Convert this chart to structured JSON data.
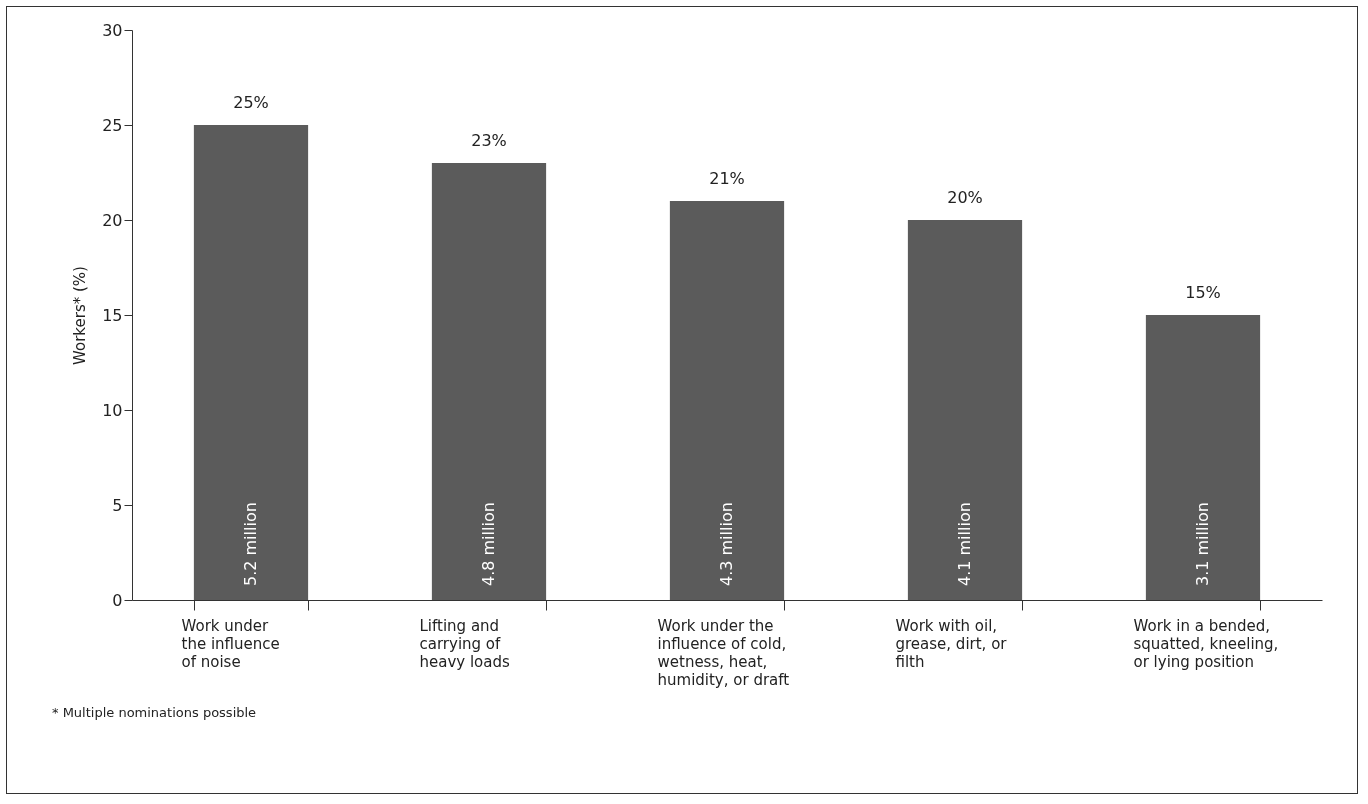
{
  "chart_data": {
    "type": "bar",
    "categories": [
      "Work under\nthe influence\nof noise",
      "Lifting and\ncarrying of\nheavy loads",
      "Work under the\ninfluence of cold,\nwetness, heat,\nhumidity, or draft",
      "Work with oil,\ngrease, dirt, or\nfilth",
      "Work in a bended,\nsquatted, kneeling,\nor lying position"
    ],
    "values": [
      25,
      23,
      21,
      20,
      15
    ],
    "value_labels": [
      "25%",
      "23%",
      "21%",
      "20%",
      "15%"
    ],
    "color": "#5b5b5b",
    "ylabel": "Workers* (%)",
    "ylim": [
      0,
      30
    ],
    "yticks": [
      0,
      5,
      10,
      15,
      20,
      25,
      30
    ],
    "grid": false,
    "annotations": [
      "5.2 million",
      "4.8 million",
      "4.3 million",
      "4.1 million",
      "3.1 million",
      "* Multiple nominations possible"
    ]
  }
}
